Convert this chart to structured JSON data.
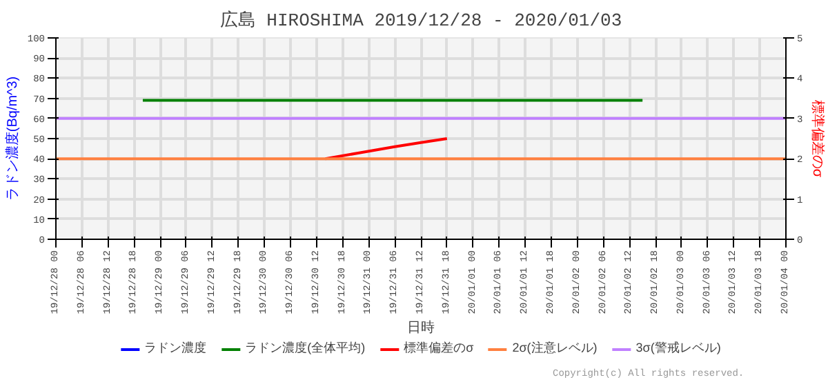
{
  "chart_data": {
    "type": "line",
    "title": "広島 HIROSHIMA 2019/12/28 - 2020/01/03",
    "xlabel": "日時",
    "ylabel": "ラドン濃度(Bq/m^3)",
    "y2label": "標準偏差のσ",
    "xlim": [
      "2019-12-28T00:00",
      "2020-01-04T00:00"
    ],
    "xticks": [
      {
        "value": "2019-12-28T00:00",
        "label": "19/12/28 00"
      },
      {
        "value": "2019-12-28T06:00",
        "label": "19/12/28 06"
      },
      {
        "value": "2019-12-28T12:00",
        "label": "19/12/28 12"
      },
      {
        "value": "2019-12-28T18:00",
        "label": "19/12/28 18"
      },
      {
        "value": "2019-12-29T00:00",
        "label": "19/12/29 00"
      },
      {
        "value": "2019-12-29T06:00",
        "label": "19/12/29 06"
      },
      {
        "value": "2019-12-29T12:00",
        "label": "19/12/29 12"
      },
      {
        "value": "2019-12-29T18:00",
        "label": "19/12/29 18"
      },
      {
        "value": "2019-12-30T00:00",
        "label": "19/12/30 00"
      },
      {
        "value": "2019-12-30T06:00",
        "label": "19/12/30 06"
      },
      {
        "value": "2019-12-30T12:00",
        "label": "19/12/30 12"
      },
      {
        "value": "2019-12-30T18:00",
        "label": "19/12/30 18"
      },
      {
        "value": "2019-12-31T00:00",
        "label": "19/12/31 00"
      },
      {
        "value": "2019-12-31T06:00",
        "label": "19/12/31 06"
      },
      {
        "value": "2019-12-31T12:00",
        "label": "19/12/31 12"
      },
      {
        "value": "2019-12-31T18:00",
        "label": "19/12/31 18"
      },
      {
        "value": "2020-01-01T00:00",
        "label": "20/01/01 00"
      },
      {
        "value": "2020-01-01T06:00",
        "label": "20/01/01 06"
      },
      {
        "value": "2020-01-01T12:00",
        "label": "20/01/01 12"
      },
      {
        "value": "2020-01-01T18:00",
        "label": "20/01/01 18"
      },
      {
        "value": "2020-01-02T00:00",
        "label": "20/01/02 00"
      },
      {
        "value": "2020-01-02T06:00",
        "label": "20/01/02 06"
      },
      {
        "value": "2020-01-02T12:00",
        "label": "20/01/02 12"
      },
      {
        "value": "2020-01-02T18:00",
        "label": "20/01/02 18"
      },
      {
        "value": "2020-01-03T00:00",
        "label": "20/01/03 00"
      },
      {
        "value": "2020-01-03T06:00",
        "label": "20/01/03 06"
      },
      {
        "value": "2020-01-03T12:00",
        "label": "20/01/03 12"
      },
      {
        "value": "2020-01-03T18:00",
        "label": "20/01/03 18"
      },
      {
        "value": "2020-01-04T00:00",
        "label": "20/01/04 00"
      }
    ],
    "ylim": [
      0,
      100
    ],
    "yticks": [
      0,
      10,
      20,
      30,
      40,
      50,
      60,
      70,
      80,
      90,
      100
    ],
    "y2lim": [
      0,
      5
    ],
    "y2ticks": [
      0,
      1,
      2,
      3,
      4,
      5
    ],
    "grid": true,
    "legend": "bottom",
    "series": [
      {
        "name": "ラドン濃度",
        "color": "#0000ff"
      },
      {
        "name": "ラドン濃度(全体平均)",
        "color": "#008000",
        "x": [
          "2019-12-28T20:00",
          "2020-01-02T15:00"
        ],
        "values": [
          69,
          69
        ]
      },
      {
        "name": "標準偏差のσ",
        "color": "#ff0000",
        "axis": "y2",
        "x": [
          "2019-12-30T14:00",
          "2019-12-30T22:00",
          "2019-12-31T06:00",
          "2019-12-31T12:00",
          "2019-12-31T18:00"
        ],
        "values": [
          2.0,
          2.15,
          2.3,
          2.4,
          2.5
        ]
      },
      {
        "name": "2σ(注意レベル)",
        "color": "#ff8040",
        "x": [
          "2019-12-28T00:00",
          "2020-01-04T00:00"
        ],
        "values": [
          40,
          40
        ]
      },
      {
        "name": "3σ(警戒レベル)",
        "color": "#c080ff",
        "x": [
          "2019-12-28T00:00",
          "2020-01-04T00:00"
        ],
        "values": [
          60,
          60
        ]
      }
    ],
    "annotations": [
      "Copyright(c) All rights reserved."
    ]
  }
}
